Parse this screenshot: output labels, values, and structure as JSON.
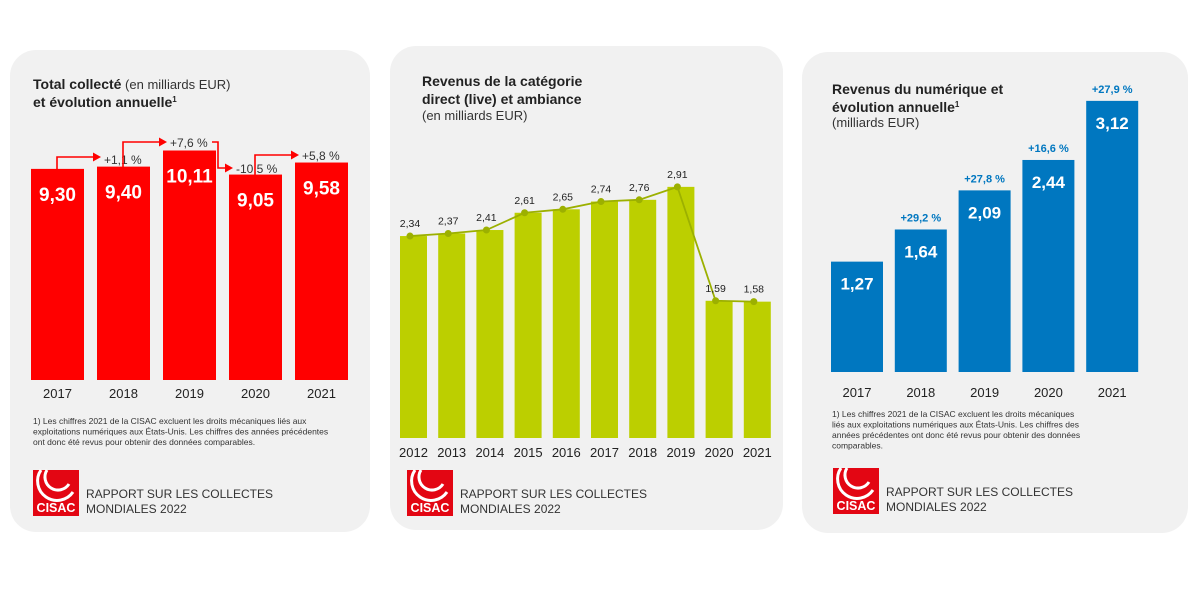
{
  "colors": {
    "panel_bg": "#f1f1f1",
    "red": "#ff0000",
    "green": "#bccf00",
    "green_line": "#9cb000",
    "blue": "#0077c0"
  },
  "footnote": [
    "1) Les chiffres 2021 de la CISAC excluent les droits mécaniques liés aux",
    "exploitations numériques aux États-Unis. Les chiffres des années précédentes",
    "ont donc été revus pour obtenir des données comparables."
  ],
  "footnote3": [
    "1) Les chiffres 2021 de la CISAC excluent les droits mécaniques",
    "liés aux exploitations numériques aux États-Unis. Les chiffres des",
    "années précédentes ont donc été revus pour obtenir des données",
    "comparables."
  ],
  "logo": {
    "brand": "CISAC",
    "line1": "RAPPORT SUR LES COLLECTES",
    "line2": "MONDIALES 2022"
  },
  "chart_data": [
    {
      "type": "bar",
      "title_bold": "Total collecté",
      "title_normal": " (en milliards EUR)",
      "title_line2": "et évolution annuelle",
      "footnote_mark": "1",
      "categories": [
        "2017",
        "2018",
        "2019",
        "2020",
        "2021"
      ],
      "values": [
        9.3,
        9.4,
        10.11,
        9.05,
        9.58
      ],
      "labels": [
        "9,30",
        "9,40",
        "10,11",
        "9,05",
        "9,58"
      ],
      "growth": [
        "",
        "+1,1 %",
        "+7,6 %",
        "-10,5 %",
        "+5,8 %"
      ],
      "color": "#ff0000"
    },
    {
      "type": "bar",
      "title_line1": "Revenus de la catégorie",
      "title_line2": "direct (live) et ambiance",
      "subtitle": "(en milliards EUR)",
      "categories": [
        "2012",
        "2013",
        "2014",
        "2015",
        "2016",
        "2017",
        "2018",
        "2019",
        "2020",
        "2021"
      ],
      "values": [
        2.34,
        2.37,
        2.41,
        2.61,
        2.65,
        2.74,
        2.76,
        2.91,
        1.59,
        1.58
      ],
      "labels": [
        "2,34",
        "2,37",
        "2,41",
        "2,61",
        "2,65",
        "2,74",
        "2,76",
        "2,91",
        "1,59",
        "1,58"
      ],
      "color": "#bccf00",
      "overlay": "line"
    },
    {
      "type": "bar",
      "title_line1": "Revenus du numérique et",
      "title_line2": "évolution annuelle",
      "footnote_mark": "1",
      "subtitle": "(milliards EUR)",
      "categories": [
        "2017",
        "2018",
        "2019",
        "2020",
        "2021"
      ],
      "values": [
        1.27,
        1.64,
        2.09,
        2.44,
        3.12
      ],
      "labels": [
        "1,27",
        "1,64",
        "2,09",
        "2,44",
        "3,12"
      ],
      "growth": [
        "",
        "+29,2 %",
        "+27,8 %",
        "+16,6 %",
        "+27,9 %"
      ],
      "color": "#0077c0"
    }
  ]
}
